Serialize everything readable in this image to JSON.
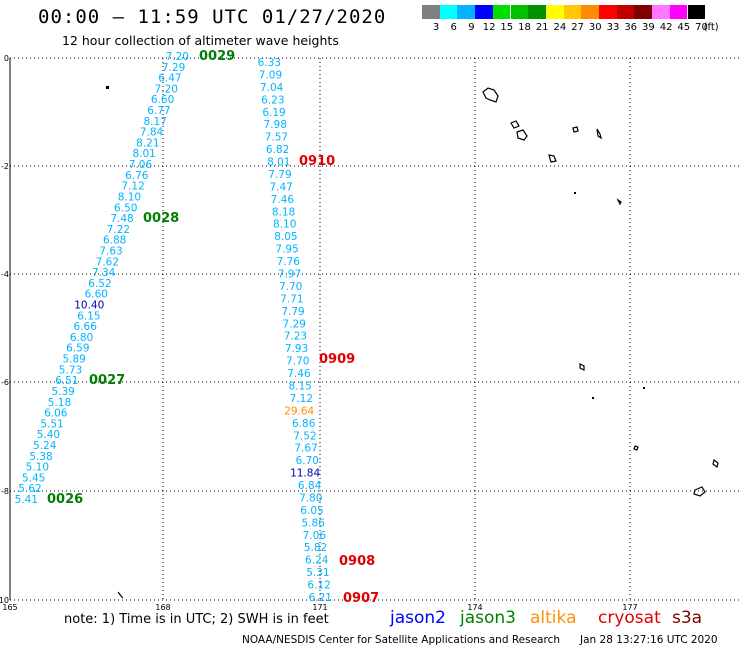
{
  "header": {
    "title": "00:00 – 11:59 UTC 01/27/2020",
    "subtitle": "12 hour collection of altimeter wave heights"
  },
  "legend": {
    "colors": [
      "#808080",
      "#00ffff",
      "#00b4ff",
      "#0000ff",
      "#00e000",
      "#00c000",
      "#009000",
      "#ffff00",
      "#ffc800",
      "#ff8c00",
      "#ff0000",
      "#c00000",
      "#800000",
      "#ff78ff",
      "#ff00ff",
      "#000000"
    ],
    "labels": [
      "3",
      "6",
      "9",
      "12",
      "15",
      "18",
      "21",
      "24",
      "27",
      "30",
      "33",
      "36",
      "39",
      "42",
      "45",
      "70"
    ],
    "unit": "(ft)"
  },
  "axes": {
    "y_labels": [
      "0",
      "-2",
      "-4",
      "-6",
      "-8",
      "-10"
    ],
    "x_labels": [
      "165",
      "168",
      "171",
      "174",
      "177"
    ]
  },
  "tracks": {
    "track1": [
      {
        "v": "7.20",
        "c": "#00b4ff"
      },
      {
        "v": "7.29",
        "c": "#00b4ff"
      },
      {
        "v": "6.47",
        "c": "#00b4ff"
      },
      {
        "v": "7.20",
        "c": "#00b4ff"
      },
      {
        "v": "6.60",
        "c": "#00b4ff"
      },
      {
        "v": "6.77",
        "c": "#00b4ff"
      },
      {
        "v": "8.17",
        "c": "#00b4ff"
      },
      {
        "v": "7.84",
        "c": "#00b4ff"
      },
      {
        "v": "8.21",
        "c": "#00b4ff"
      },
      {
        "v": "8.01",
        "c": "#00b4ff"
      },
      {
        "v": "7.06",
        "c": "#00b4ff"
      },
      {
        "v": "6.76",
        "c": "#00b4ff"
      },
      {
        "v": "7.12",
        "c": "#00b4ff"
      },
      {
        "v": "8.10",
        "c": "#00b4ff"
      },
      {
        "v": "6.50",
        "c": "#00b4ff"
      },
      {
        "v": "7.48",
        "c": "#00b4ff"
      },
      {
        "v": "7.22",
        "c": "#00b4ff"
      },
      {
        "v": "6.88",
        "c": "#00b4ff"
      },
      {
        "v": "7.63",
        "c": "#00b4ff"
      },
      {
        "v": "7.62",
        "c": "#00b4ff"
      },
      {
        "v": "7.34",
        "c": "#00b4ff"
      },
      {
        "v": "6.52",
        "c": "#00b4ff"
      },
      {
        "v": "6.60",
        "c": "#00b4ff"
      },
      {
        "v": "10.40",
        "c": "#0000b4"
      },
      {
        "v": "6.15",
        "c": "#00b4ff"
      },
      {
        "v": "6.66",
        "c": "#00b4ff"
      },
      {
        "v": "6.80",
        "c": "#00b4ff"
      },
      {
        "v": "6.59",
        "c": "#00b4ff"
      },
      {
        "v": "5.89",
        "c": "#00b4ff"
      },
      {
        "v": "5.73",
        "c": "#00b4ff"
      },
      {
        "v": "6.51",
        "c": "#00b4ff"
      },
      {
        "v": "5.39",
        "c": "#00b4ff"
      },
      {
        "v": "5.18",
        "c": "#00b4ff"
      },
      {
        "v": "6.06",
        "c": "#00b4ff"
      },
      {
        "v": "5.51",
        "c": "#00b4ff"
      },
      {
        "v": "5.40",
        "c": "#00b4ff"
      },
      {
        "v": "5.24",
        "c": "#00b4ff"
      },
      {
        "v": "5.38",
        "c": "#00b4ff"
      },
      {
        "v": "5.10",
        "c": "#00b4ff"
      },
      {
        "v": "5.45",
        "c": "#00b4ff"
      },
      {
        "v": "5.62",
        "c": "#00b4ff"
      },
      {
        "v": "5.41",
        "c": "#00b4ff"
      }
    ],
    "track2": [
      {
        "v": "6.33",
        "c": "#00b4ff"
      },
      {
        "v": "7.09",
        "c": "#00b4ff"
      },
      {
        "v": "7.04",
        "c": "#00b4ff"
      },
      {
        "v": "6.23",
        "c": "#00b4ff"
      },
      {
        "v": "6.19",
        "c": "#00b4ff"
      },
      {
        "v": "7.98",
        "c": "#00b4ff"
      },
      {
        "v": "7.57",
        "c": "#00b4ff"
      },
      {
        "v": "6.82",
        "c": "#00b4ff"
      },
      {
        "v": "8.01",
        "c": "#00b4ff"
      },
      {
        "v": "7.79",
        "c": "#00b4ff"
      },
      {
        "v": "7.47",
        "c": "#00b4ff"
      },
      {
        "v": "7.46",
        "c": "#00b4ff"
      },
      {
        "v": "8.18",
        "c": "#00b4ff"
      },
      {
        "v": "8.10",
        "c": "#00b4ff"
      },
      {
        "v": "8.05",
        "c": "#00b4ff"
      },
      {
        "v": "7.95",
        "c": "#00b4ff"
      },
      {
        "v": "7.76",
        "c": "#00b4ff"
      },
      {
        "v": "7.97",
        "c": "#00b4ff"
      },
      {
        "v": "7.70",
        "c": "#00b4ff"
      },
      {
        "v": "7.71",
        "c": "#00b4ff"
      },
      {
        "v": "7.79",
        "c": "#00b4ff"
      },
      {
        "v": "7.29",
        "c": "#00b4ff"
      },
      {
        "v": "7.23",
        "c": "#00b4ff"
      },
      {
        "v": "7.93",
        "c": "#00b4ff"
      },
      {
        "v": "7.70",
        "c": "#00b4ff"
      },
      {
        "v": "7.46",
        "c": "#00b4ff"
      },
      {
        "v": "8.15",
        "c": "#00b4ff"
      },
      {
        "v": "7.12",
        "c": "#00b4ff"
      },
      {
        "v": "29.64",
        "c": "#ff9000"
      },
      {
        "v": "6.86",
        "c": "#00b4ff"
      },
      {
        "v": "7.52",
        "c": "#00b4ff"
      },
      {
        "v": "7.67",
        "c": "#00b4ff"
      },
      {
        "v": "6.70",
        "c": "#00b4ff"
      },
      {
        "v": "11.84",
        "c": "#0000b4"
      },
      {
        "v": "6.84",
        "c": "#00b4ff"
      },
      {
        "v": "7.80",
        "c": "#00b4ff"
      },
      {
        "v": "6.05",
        "c": "#00b4ff"
      },
      {
        "v": "5.86",
        "c": "#00b4ff"
      },
      {
        "v": "7.06",
        "c": "#00b4ff"
      },
      {
        "v": "5.82",
        "c": "#00b4ff"
      },
      {
        "v": "6.24",
        "c": "#00b4ff"
      },
      {
        "v": "5.31",
        "c": "#00b4ff"
      },
      {
        "v": "6.12",
        "c": "#00b4ff"
      },
      {
        "v": "6.21",
        "c": "#00b4ff"
      }
    ],
    "times_track1": [
      {
        "t": "0029",
        "c": "#008000"
      },
      {
        "t": "0028",
        "c": "#008000"
      },
      {
        "t": "0027",
        "c": "#008000"
      },
      {
        "t": "0026",
        "c": "#008000"
      }
    ],
    "times_track2": [
      {
        "t": "0910",
        "c": "#e00000"
      },
      {
        "t": "0909",
        "c": "#e00000"
      },
      {
        "t": "0908",
        "c": "#e00000"
      },
      {
        "t": "0907",
        "c": "#e00000"
      }
    ]
  },
  "note": "note: 1) Time is in UTC; 2) SWH is in feet",
  "satellites": [
    {
      "name": "jason2",
      "color": "#0000ff"
    },
    {
      "name": "jason3",
      "color": "#008000"
    },
    {
      "name": "altika",
      "color": "#ff9000"
    },
    {
      "name": "cryosat",
      "color": "#e00000"
    },
    {
      "name": "s3a",
      "color": "#800000"
    }
  ],
  "footer": {
    "credit": "NOAA/NESDIS Center for Satellite Applications and Research",
    "timestamp": "Jan 28 13:27:16 UTC 2020"
  }
}
